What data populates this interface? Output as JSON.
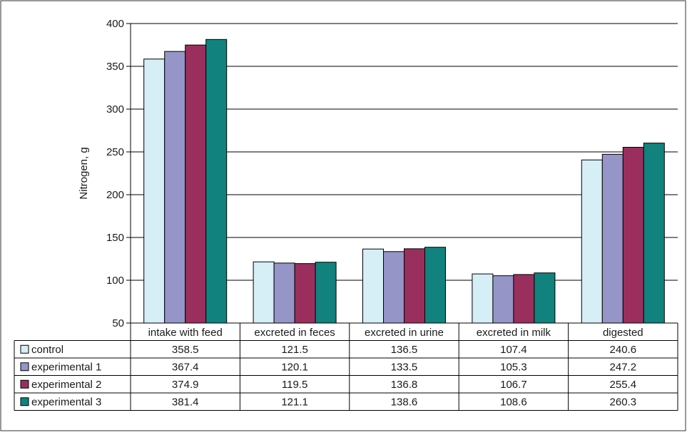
{
  "chart_data": {
    "type": "bar",
    "ylabel": "Nitrogen, g",
    "ylim": [
      50,
      400
    ],
    "yticks": [
      50,
      100,
      150,
      200,
      250,
      300,
      350,
      400
    ],
    "grid": true,
    "legend": "data-table-left",
    "categories": [
      "intake with feed",
      "excreted in feces",
      "excreted in urine",
      "excreted in milk",
      "digested"
    ],
    "series": [
      {
        "name": "control",
        "color": "#d6eef5",
        "values": [
          358.5,
          121.5,
          136.5,
          107.4,
          240.6
        ],
        "labels": [
          "358.5",
          "121.5",
          "136.5",
          "107.4",
          "240.6"
        ]
      },
      {
        "name": "experimental 1",
        "color": "#9595c7",
        "values": [
          367.4,
          120.1,
          133.5,
          105.3,
          247.2
        ],
        "labels": [
          "367.4",
          "120.1",
          "133.5",
          "105.3",
          "247.2"
        ]
      },
      {
        "name": "experimental 2",
        "color": "#9a2f5d",
        "values": [
          374.9,
          119.5,
          136.8,
          106.7,
          255.4
        ],
        "labels": [
          "374.9",
          "119.5",
          "136.8",
          "106.7",
          "255.4"
        ]
      },
      {
        "name": "experimental 3",
        "color": "#11827e",
        "values": [
          381.4,
          121.1,
          138.6,
          108.6,
          260.3
        ],
        "labels": [
          "381.4",
          "121.1",
          "138.6",
          "108.6",
          "260.3"
        ]
      }
    ]
  }
}
